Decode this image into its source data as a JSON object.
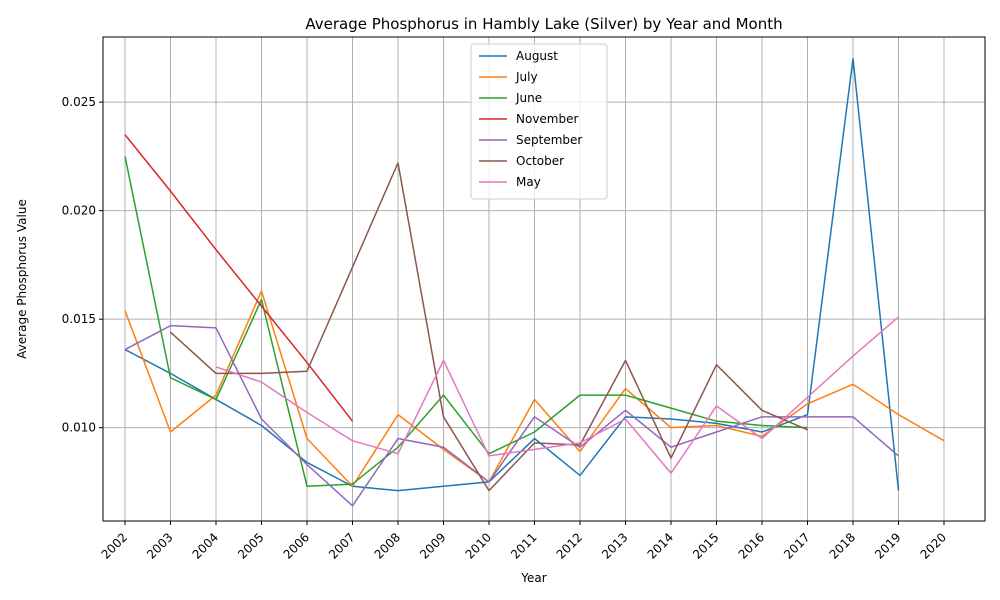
{
  "chart_data": {
    "type": "line",
    "title": "Average Phosphorus in Hambly Lake (Silver) by Year and Month",
    "xlabel": "Year",
    "ylabel": "Average Phosphorus Value",
    "x": [
      "2002",
      "2003",
      "2004",
      "2005",
      "2006",
      "2007",
      "2008",
      "2009",
      "2010",
      "2011",
      "2012",
      "2013",
      "2014",
      "2015",
      "2016",
      "2017",
      "2018",
      "2019",
      "2020"
    ],
    "ylim": [
      0.0057,
      0.028
    ],
    "yticks": [
      0.01,
      0.015,
      0.02,
      0.025
    ],
    "ytick_labels": [
      "0.010",
      "0.015",
      "0.020",
      "0.025"
    ],
    "grid": true,
    "legend_position": "top-center",
    "series": [
      {
        "name": "August",
        "color": "#1f77b4",
        "values": [
          0.0136,
          0.0125,
          0.0113,
          0.0101,
          0.0084,
          0.0073,
          0.0071,
          0.0073,
          0.0075,
          0.0095,
          0.0078,
          0.0105,
          0.0104,
          0.0102,
          0.0098,
          0.0106,
          0.027,
          0.0071,
          null
        ]
      },
      {
        "name": "July",
        "color": "#ff7f0e",
        "values": [
          0.0154,
          0.0098,
          0.0115,
          0.0163,
          0.0095,
          0.0073,
          0.0106,
          0.009,
          0.0075,
          0.0113,
          0.0089,
          0.0118,
          0.01,
          0.0101,
          0.0096,
          0.0111,
          0.012,
          0.0106,
          0.0094
        ]
      },
      {
        "name": "June",
        "color": "#2ca02c",
        "values": [
          0.0225,
          0.0123,
          0.0113,
          0.0159,
          0.0073,
          0.0074,
          0.0091,
          0.0115,
          0.0088,
          0.0098,
          0.0115,
          0.0115,
          0.0109,
          0.0103,
          0.0101,
          0.01,
          null,
          null,
          null
        ]
      },
      {
        "name": "November",
        "color": "#d62728",
        "values": [
          0.0235,
          0.0209,
          0.0182,
          0.0156,
          0.013,
          0.0103,
          null,
          null,
          null,
          null,
          null,
          null,
          null,
          null,
          null,
          null,
          null,
          null,
          null
        ]
      },
      {
        "name": "September",
        "color": "#9467bd",
        "values": [
          0.0136,
          0.0147,
          0.0146,
          0.0104,
          0.0083,
          0.0064,
          0.0095,
          0.0091,
          0.0075,
          0.0105,
          0.0091,
          0.0108,
          0.0091,
          0.0098,
          0.0105,
          0.0105,
          0.0105,
          0.0087,
          null
        ]
      },
      {
        "name": "October",
        "color": "#8c564b",
        "values": [
          null,
          0.0144,
          0.0125,
          0.0125,
          0.0126,
          0.0174,
          0.0222,
          0.0105,
          0.0071,
          0.0093,
          0.0092,
          0.0131,
          0.0086,
          0.0129,
          0.0108,
          0.0099,
          null,
          null,
          null
        ]
      },
      {
        "name": "May",
        "color": "#e377c2",
        "values": [
          null,
          null,
          0.0128,
          0.0121,
          0.0107,
          0.0094,
          0.0088,
          0.0131,
          0.0087,
          0.009,
          0.0093,
          0.0104,
          0.0079,
          0.011,
          0.0095,
          0.0114,
          0.0133,
          0.0151,
          null
        ]
      }
    ]
  }
}
